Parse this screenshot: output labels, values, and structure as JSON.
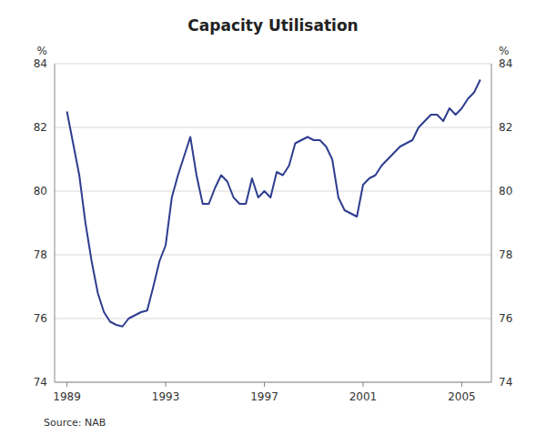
{
  "chart_data": {
    "type": "line",
    "title": "Capacity Utilisation",
    "ylabel": "%",
    "y2label": "%",
    "source": "Source: NAB",
    "color": "#2e3d8f",
    "grid": true,
    "xlim": [
      1988.5,
      2006.2
    ],
    "xticks": [
      1989,
      1993,
      1997,
      2001,
      2005
    ],
    "ylim": [
      74,
      84
    ],
    "yticks": [
      74,
      76,
      78,
      80,
      82,
      84
    ],
    "y2lim": [
      74,
      84
    ],
    "y2ticks": [
      74,
      76,
      78,
      80,
      82,
      84
    ],
    "x": [
      1989.0,
      1989.25,
      1989.5,
      1989.75,
      1990.0,
      1990.25,
      1990.5,
      1990.75,
      1991.0,
      1991.25,
      1991.5,
      1991.75,
      1992.0,
      1992.25,
      1992.5,
      1992.75,
      1993.0,
      1993.25,
      1993.5,
      1993.75,
      1994.0,
      1994.25,
      1994.5,
      1994.75,
      1995.0,
      1995.25,
      1995.5,
      1995.75,
      1996.0,
      1996.25,
      1996.5,
      1996.75,
      1997.0,
      1997.25,
      1997.5,
      1997.75,
      1998.0,
      1998.25,
      1998.5,
      1998.75,
      1999.0,
      1999.25,
      1999.5,
      1999.75,
      2000.0,
      2000.25,
      2000.5,
      2000.75,
      2001.0,
      2001.25,
      2001.5,
      2001.75,
      2002.0,
      2002.25,
      2002.5,
      2002.75,
      2003.0,
      2003.25,
      2003.5,
      2003.75,
      2004.0,
      2004.25,
      2004.5,
      2004.75,
      2005.0,
      2005.25,
      2005.5,
      2005.75
    ],
    "values": [
      82.5,
      81.5,
      80.5,
      79.0,
      77.8,
      76.8,
      76.2,
      75.9,
      75.8,
      75.75,
      76.0,
      76.1,
      76.2,
      76.25,
      77.0,
      77.8,
      78.3,
      79.8,
      80.5,
      81.1,
      81.7,
      80.5,
      79.6,
      79.6,
      80.1,
      80.5,
      80.3,
      79.8,
      79.6,
      79.6,
      80.4,
      79.8,
      80.0,
      79.8,
      80.6,
      80.5,
      80.8,
      81.5,
      81.6,
      81.7,
      81.6,
      81.6,
      81.4,
      81.0,
      79.8,
      79.4,
      79.3,
      79.2,
      80.2,
      80.4,
      80.5,
      80.8,
      81.0,
      81.2,
      81.4,
      81.5,
      81.6,
      82.0,
      82.2,
      82.4,
      82.4,
      82.2,
      82.6,
      82.4,
      82.6,
      82.9,
      83.1,
      83.5
    ]
  }
}
